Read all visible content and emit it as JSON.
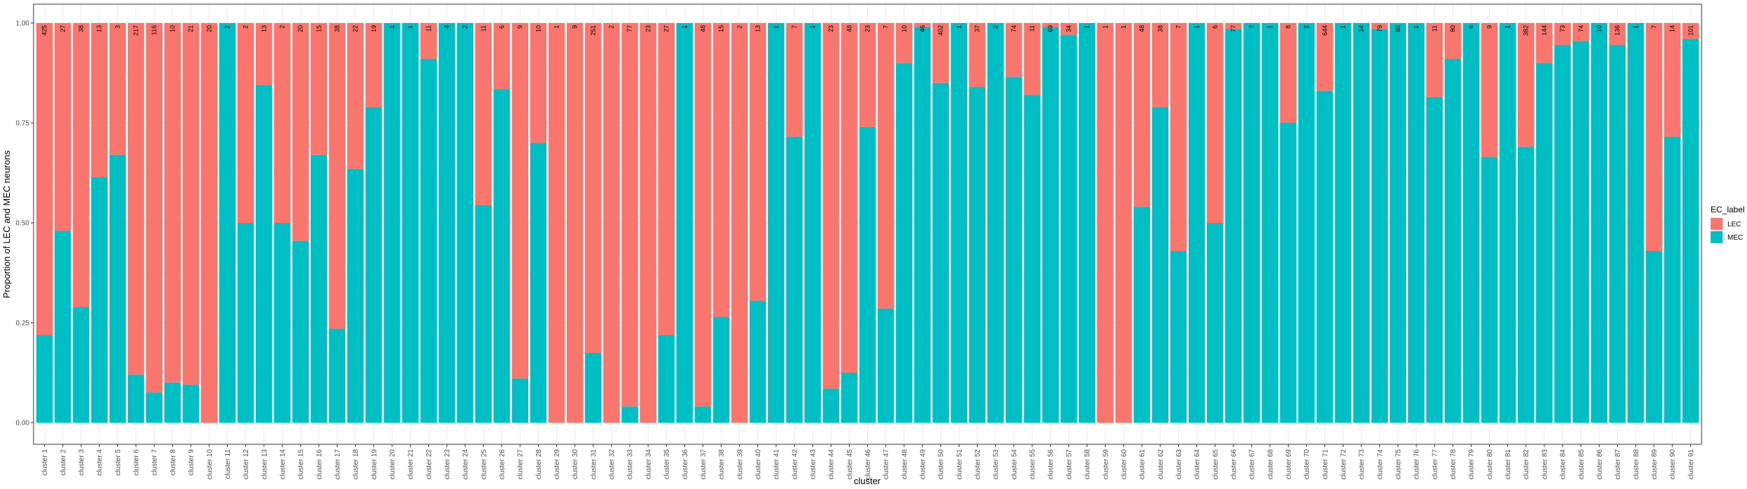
{
  "chart_data": {
    "type": "bar",
    "stacked": true,
    "xlabel": "cluster",
    "ylabel": "Proportion of LEC and MEC neurons",
    "ylim": [
      0,
      1
    ],
    "yticks": [
      "0.00",
      "0.25",
      "0.50",
      "0.75",
      "1.00"
    ],
    "grid": true,
    "legend": {
      "title": "EC_label",
      "placement": "right"
    },
    "categories": [
      "cluster 1",
      "cluster 2",
      "cluster 3",
      "cluster 4",
      "cluster 5",
      "cluster 6",
      "cluster 7",
      "cluster 8",
      "cluster 9",
      "cluster 10",
      "cluster 11",
      "cluster 12",
      "cluster 13",
      "cluster 14",
      "cluster 15",
      "cluster 16",
      "cluster 17",
      "cluster 18",
      "cluster 19",
      "cluster 20",
      "cluster 21",
      "cluster 22",
      "cluster 23",
      "cluster 24",
      "cluster 25",
      "cluster 26",
      "cluster 27",
      "cluster 28",
      "cluster 29",
      "cluster 30",
      "cluster 31",
      "cluster 32",
      "cluster 33",
      "cluster 34",
      "cluster 35",
      "cluster 36",
      "cluster 37",
      "cluster 38",
      "cluster 39",
      "cluster 40",
      "cluster 41",
      "cluster 42",
      "cluster 43",
      "cluster 44",
      "cluster 45",
      "cluster 46",
      "cluster 47",
      "cluster 48",
      "cluster 49",
      "cluster 50",
      "cluster 51",
      "cluster 52",
      "cluster 53",
      "cluster 54",
      "cluster 55",
      "cluster 56",
      "cluster 57",
      "cluster 58",
      "cluster 59",
      "cluster 60",
      "cluster 61",
      "cluster 62",
      "cluster 63",
      "cluster 64",
      "cluster 65",
      "cluster 66",
      "cluster 67",
      "cluster 68",
      "cluster 69",
      "cluster 70",
      "cluster 71",
      "cluster 72",
      "cluster 73",
      "cluster 74",
      "cluster 75",
      "cluster 76",
      "cluster 77",
      "cluster 78",
      "cluster 79",
      "cluster 80",
      "cluster 81",
      "cluster 82",
      "cluster 83",
      "cluster 84",
      "cluster 85",
      "cluster 86",
      "cluster 87",
      "cluster 88",
      "cluster 89",
      "cluster 90",
      "cluster 91"
    ],
    "series": [
      {
        "name": "LEC",
        "color": "#F8766D"
      },
      {
        "name": "MEC",
        "color": "#00BFC4"
      }
    ],
    "mec_proportion": [
      0.22,
      0.48,
      0.29,
      0.615,
      0.67,
      0.12,
      0.075,
      0.1,
      0.095,
      0,
      1,
      0.5,
      0.845,
      0.5,
      0.455,
      0.67,
      0.235,
      0.635,
      0.79,
      1,
      1,
      0.91,
      1,
      1,
      0.545,
      0.835,
      0.11,
      0.7,
      0,
      0,
      0.175,
      0,
      0.04,
      0,
      0.22,
      1,
      0.04,
      0.265,
      0,
      0.305,
      1,
      0.715,
      1,
      0.085,
      0.125,
      0.74,
      0.285,
      0.9,
      0.99,
      0.85,
      1,
      0.84,
      1,
      0.865,
      0.82,
      0.99,
      0.97,
      1,
      0,
      0,
      0.54,
      0.79,
      0.43,
      1,
      0.5,
      0.985,
      1,
      1,
      0.75,
      1,
      0.83,
      1,
      1,
      0.985,
      1,
      1,
      0.815,
      0.91,
      1,
      0.665,
      1,
      0.69,
      0.9,
      0.945,
      0.955,
      1,
      0.945,
      1,
      0.43,
      0.715,
      0.96
    ],
    "bar_labels": [
      "425",
      "27",
      "38",
      "13",
      "3",
      "217",
      "116",
      "10",
      "21",
      "20",
      "2",
      "2",
      "13",
      "2",
      "20",
      "15",
      "38",
      "22",
      "19",
      "1",
      "1",
      "11",
      "4",
      "2",
      "11",
      "6",
      "9",
      "10",
      "1",
      "9",
      "251",
      "2",
      "77",
      "23",
      "27",
      "1",
      "48",
      "15",
      "2",
      "13",
      "1",
      "7",
      "1",
      "23",
      "48",
      "23",
      "7",
      "10",
      "46",
      "402",
      "1",
      "37",
      "2",
      "74",
      "11",
      "69",
      "34",
      "1",
      "1",
      "1",
      "48",
      "38",
      "7",
      "1",
      "6",
      "77",
      "2",
      "1",
      "8",
      "2",
      "644",
      "1",
      "34",
      "79",
      "90",
      "1",
      "11",
      "80",
      "6",
      "9",
      "1",
      "382",
      "144",
      "73",
      "74",
      "10",
      "136",
      "1",
      "7",
      "14",
      "101"
    ]
  }
}
